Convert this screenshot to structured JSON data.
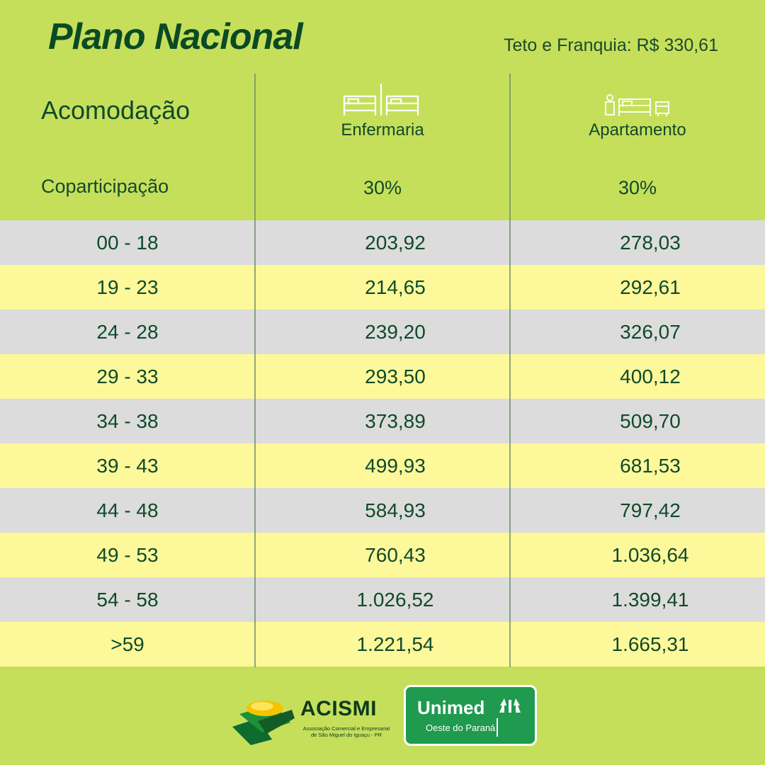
{
  "title": "Plano Nacional",
  "subtitle": "Teto e Franquia: R$ 330,61",
  "header": {
    "accommodation_label": "Acomodação",
    "coparticipation_label": "Coparticipação",
    "columns": [
      {
        "name": "Enfermaria",
        "icon": "ward-beds-icon",
        "coparticipation": "30%"
      },
      {
        "name": "Apartamento",
        "icon": "apartment-room-icon",
        "coparticipation": "30%"
      }
    ]
  },
  "rows": [
    {
      "age": "00 - 18",
      "enfermaria": "203,92",
      "apartamento": "278,03"
    },
    {
      "age": "19 - 23",
      "enfermaria": "214,65",
      "apartamento": "292,61"
    },
    {
      "age": "24 - 28",
      "enfermaria": "239,20",
      "apartamento": "326,07"
    },
    {
      "age": "29 - 33",
      "enfermaria": "293,50",
      "apartamento": "400,12"
    },
    {
      "age": "34 - 38",
      "enfermaria": "373,89",
      "apartamento": "509,70"
    },
    {
      "age": "39 - 43",
      "enfermaria": "499,93",
      "apartamento": "681,53"
    },
    {
      "age": "44 - 48",
      "enfermaria": "584,93",
      "apartamento": "797,42"
    },
    {
      "age": "49 - 53",
      "enfermaria": "760,43",
      "apartamento": "1.036,64"
    },
    {
      "age": "54 - 58",
      "enfermaria": "1.026,52",
      "apartamento": "1.399,41"
    },
    {
      "age": ">59",
      "enfermaria": "1.221,54",
      "apartamento": "1.665,31"
    }
  ],
  "footer": {
    "acismi": {
      "name": "ACISMI",
      "subtitle": "Associação Comercial e Empresarial de São Miguel do Iguaçu - PR"
    },
    "unimed": {
      "name": "Unimed",
      "subtitle": "Oeste do Paraná"
    }
  },
  "colors": {
    "background": "#c6df5b",
    "row_gray": "#dcdcdc",
    "row_yellow": "#fdf89a",
    "text": "#0f4a2a",
    "unimed": "#1f9a4e"
  }
}
